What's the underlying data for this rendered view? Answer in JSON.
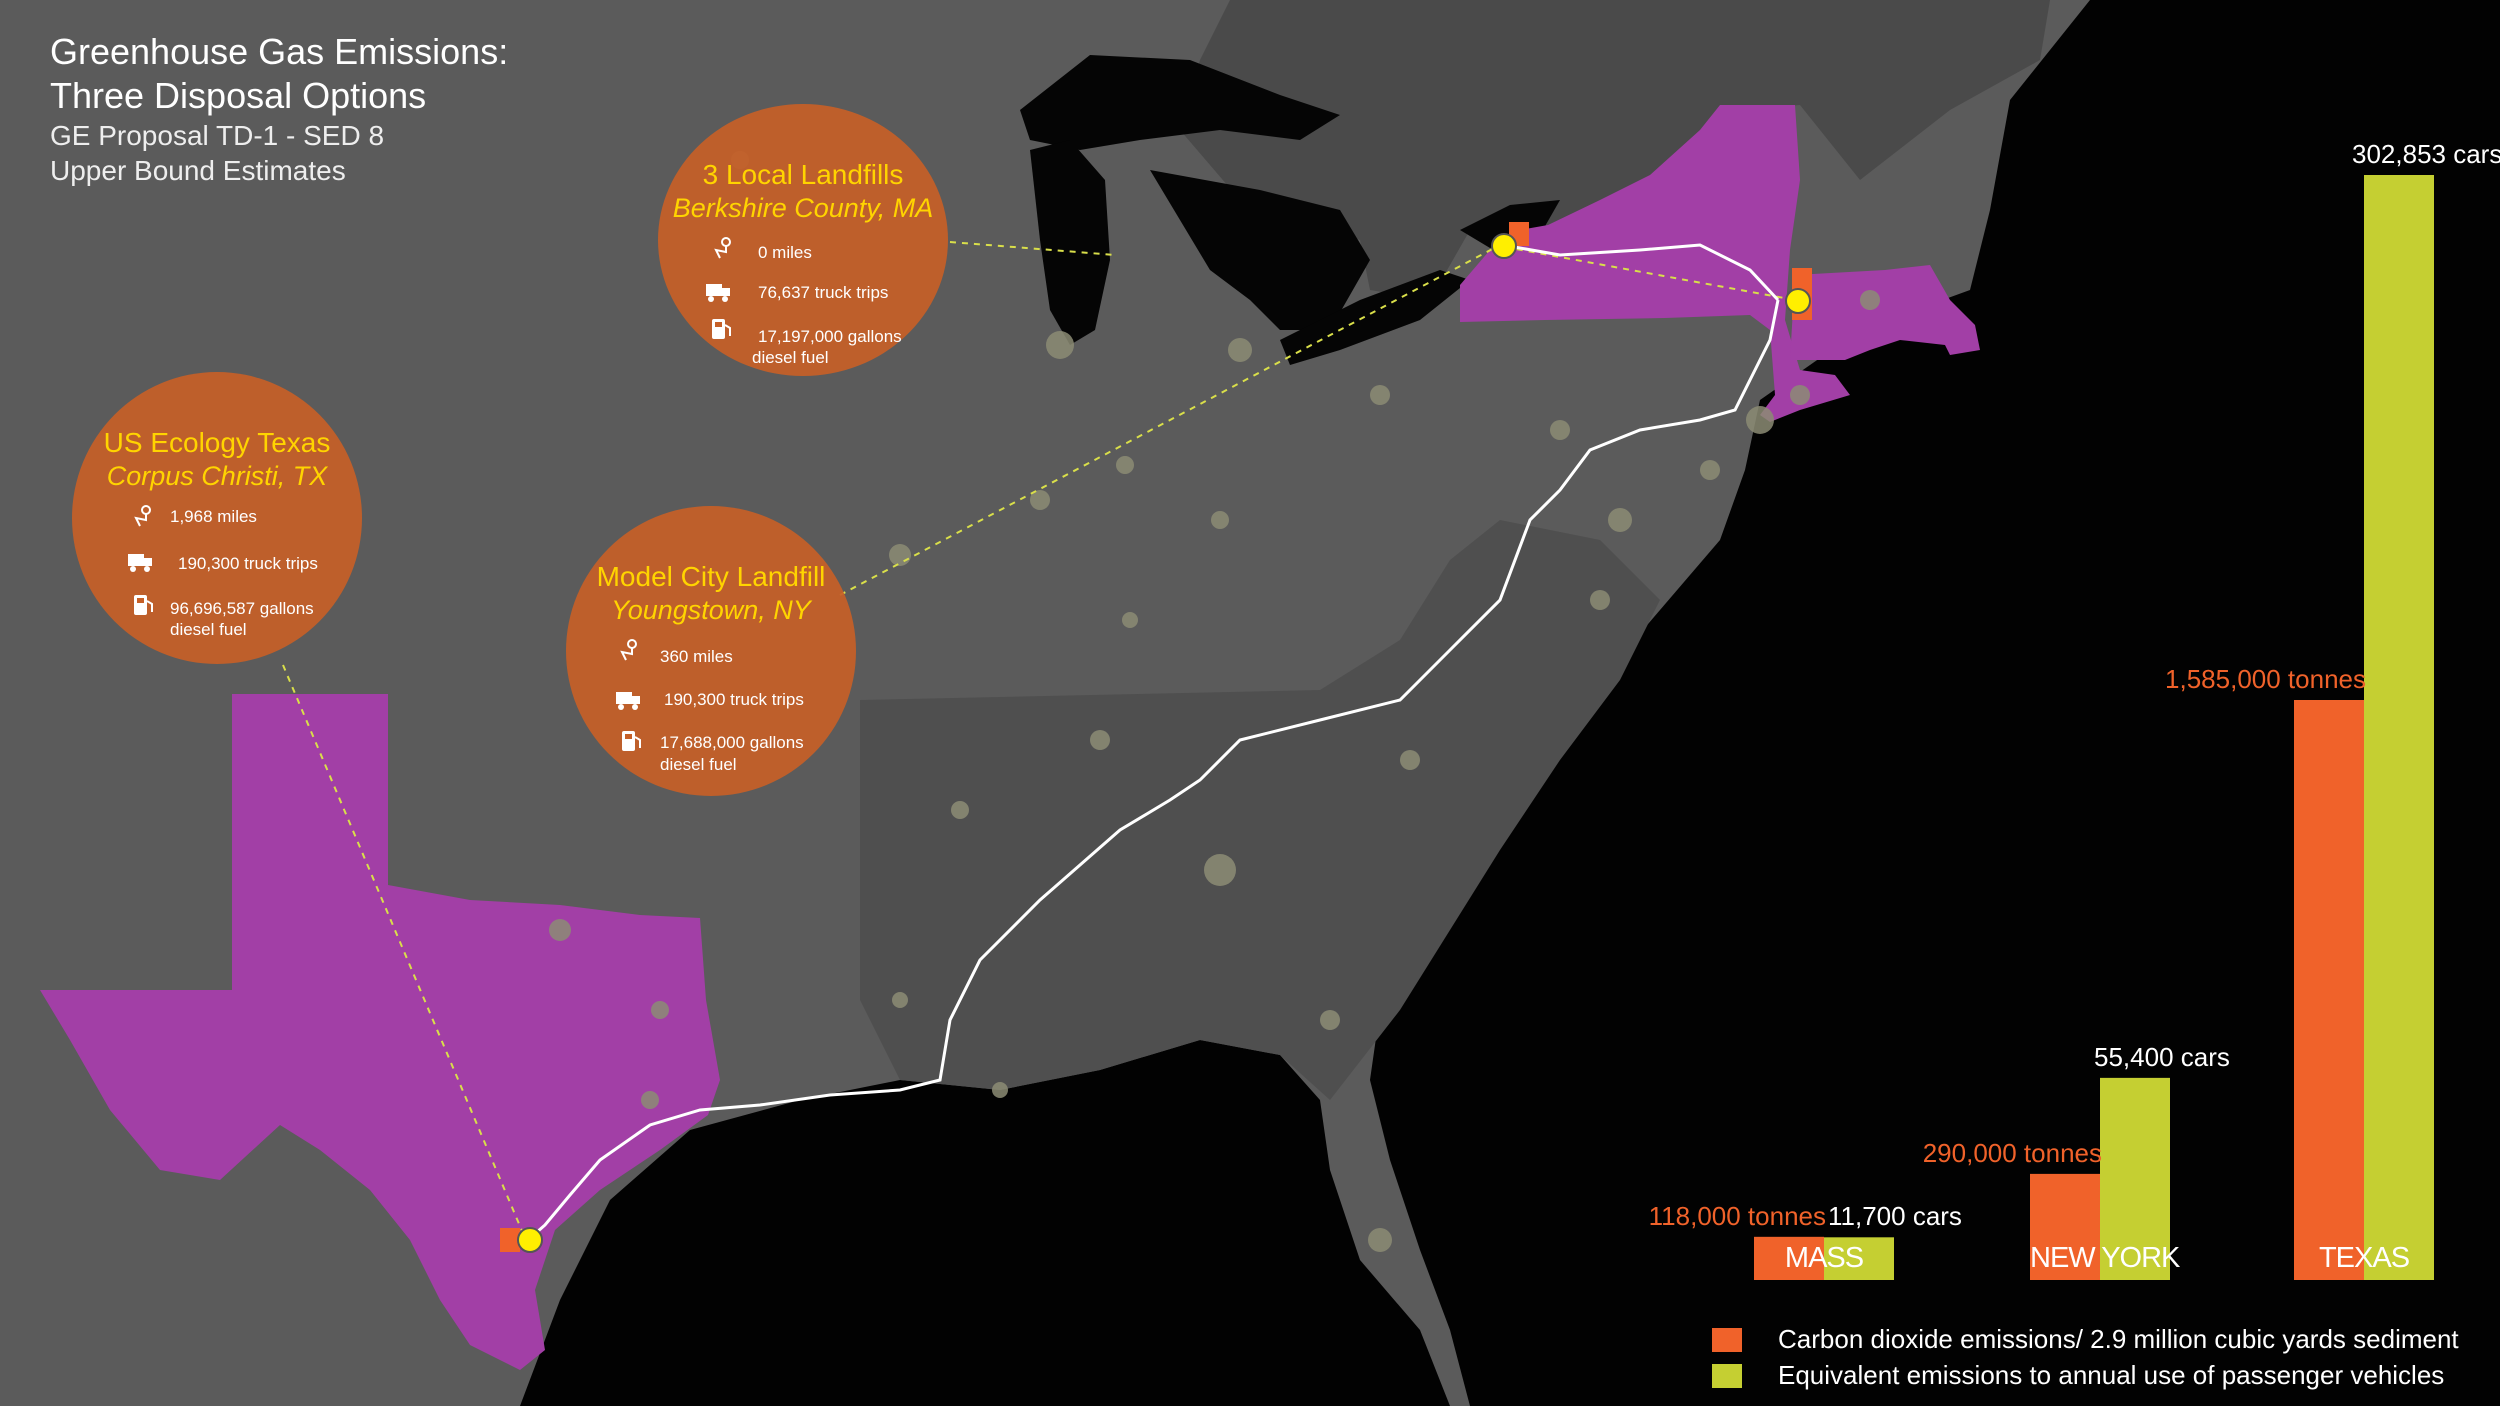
{
  "title": {
    "line1": "Greenhouse Gas Emissions:",
    "line2": "Three Disposal Options",
    "line3": "GE Proposal TD-1 - SED 8",
    "line4": "Upper Bound Estimates"
  },
  "options": [
    {
      "name": "3 Local Landfills",
      "place": "Berkshire County, MA",
      "distance": "0 miles",
      "trips": "76,637 truck trips",
      "fuel_line1": "17,197,000 gallons",
      "fuel_line2": "diesel fuel"
    },
    {
      "name": "US Ecology Texas",
      "place": "Corpus Christi, TX",
      "distance": "1,968 miles",
      "trips": "190,300 truck trips",
      "fuel_line1": "96,696,587 gallons",
      "fuel_line2": "diesel fuel"
    },
    {
      "name": "Model City Landfill",
      "place": "Youngstown, NY",
      "distance": "360 miles",
      "trips": "190,300 truck trips",
      "fuel_line1": "17,688,000 gallons",
      "fuel_line2": "diesel fuel"
    }
  ],
  "icons": [
    "route-pin-icon",
    "truck-icon",
    "fuel-pump-icon"
  ],
  "colors": {
    "co2": "#f0622a",
    "cars": "#c5cf32",
    "highlight_state": "#a23fa6",
    "bubble": "#c66028",
    "site_marker": "#ffef00",
    "route": "#ffffff"
  },
  "chart_data": {
    "type": "bar",
    "categories": [
      "MASS",
      "NEW YORK",
      "TEXAS"
    ],
    "series": [
      {
        "name": "Carbon dioxide emissions/ 2.9 million cubic yards sediment",
        "values": [
          118000,
          290000,
          1585000
        ],
        "labels": [
          "118,000 tonnes",
          "290,000 tonnes",
          "1,585,000 tonnes"
        ],
        "color": "#f0622a"
      },
      {
        "name": "Equivalent emissions to annual use of passenger vehicles",
        "values": [
          11700,
          55400,
          302853
        ],
        "labels": [
          "11,700 cars",
          "55,400 cars",
          "302,853 cars"
        ],
        "color": "#c5cf32"
      }
    ],
    "title": "",
    "xlabel": "",
    "ylabel": ""
  },
  "legend": [
    {
      "label": "Carbon dioxide emissions/ 2.9 million cubic yards sediment",
      "color": "#f0622a"
    },
    {
      "label": "Equivalent emissions to annual use of passenger vehicles",
      "color": "#c5cf32"
    }
  ]
}
